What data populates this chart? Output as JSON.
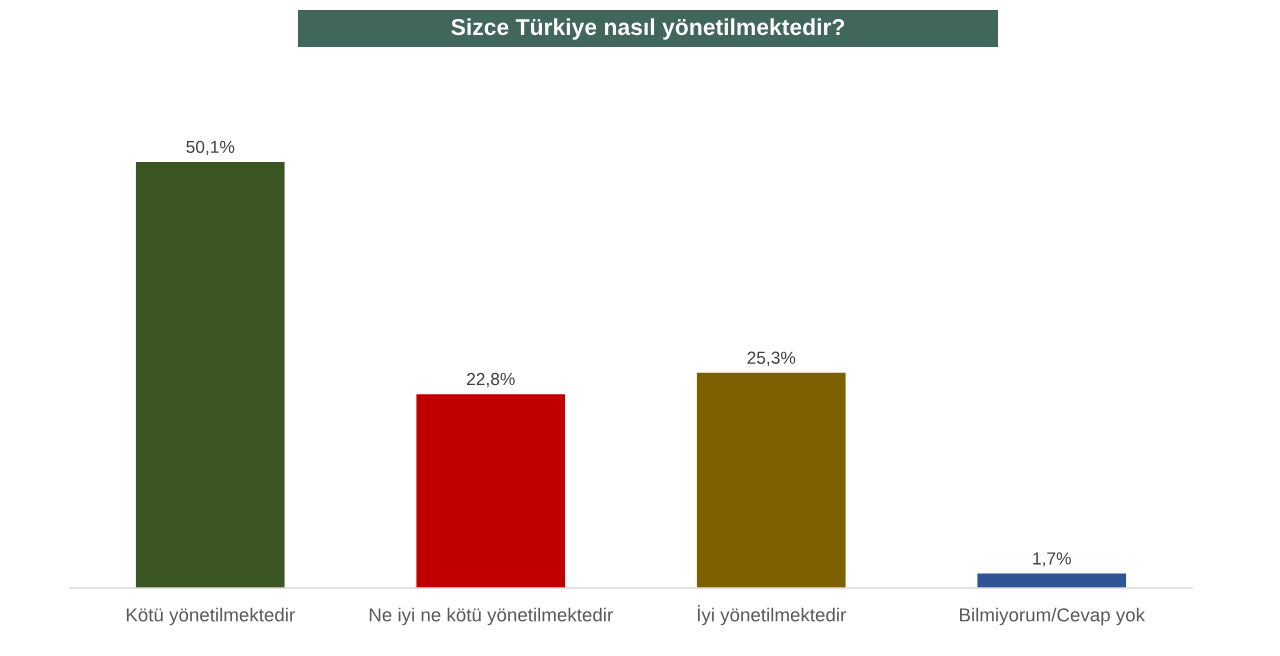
{
  "chart_data": {
    "type": "bar",
    "title": "Sizce Türkiye nasıl yönetilmektedir?",
    "categories": [
      "Kötü yönetilmektedir",
      "Ne iyi ne kötü yönetilmektedir",
      "İyi yönetilmektedir",
      "Bilmiyorum/Cevap yok"
    ],
    "values": [
      50.1,
      22.8,
      25.3,
      1.7
    ],
    "colors": [
      "#3b5623",
      "#c00000",
      "#7f6000",
      "#2f5597"
    ],
    "value_labels": [
      "50,1%",
      "22,8%",
      "25,3%",
      "1,7%"
    ],
    "tick_labels": "x"
  }
}
